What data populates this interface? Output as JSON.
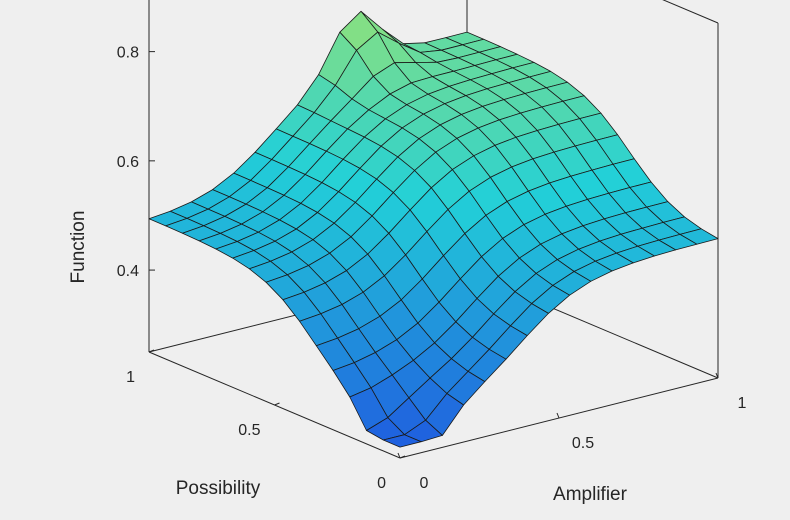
{
  "chart_data": {
    "type": "surface",
    "title": "",
    "xlabel": "Amplifier",
    "ylabel": "Possibility",
    "zlabel": "Function",
    "xlim": [
      0,
      1
    ],
    "ylim": [
      0,
      1
    ],
    "zlim": [
      0.25,
      0.9
    ],
    "x_ticks": [
      "0",
      "0.5",
      "1"
    ],
    "y_ticks": [
      "0",
      "0.5",
      "1"
    ],
    "z_ticks": [
      "0.4",
      "0.6",
      "0.8"
    ],
    "grid": false,
    "colormap": "parula",
    "colors": {
      "low": "#1f4fe0",
      "mid": "#22d0d8",
      "high": "#dcee3a",
      "edge": "#1a1a1a",
      "background": "#efefef",
      "axis": "#262626"
    },
    "grid_x": [
      0,
      0.0667,
      0.1333,
      0.2,
      0.2667,
      0.3333,
      0.4,
      0.4667,
      0.5333,
      0.6,
      0.6667,
      0.7333,
      0.8,
      0.8667,
      0.9333,
      1
    ],
    "grid_y": [
      0,
      0.0667,
      0.1333,
      0.2,
      0.2667,
      0.3333,
      0.4,
      0.4667,
      0.5333,
      0.6,
      0.6667,
      0.7333,
      0.8,
      0.8667,
      0.9333,
      1
    ],
    "model": {
      "description_free_params": true,
      "base": 0.3,
      "b_amplifier_amp": 0.2,
      "b_amplifier_center": 0.38,
      "b_amplifier_width": 0.1,
      "possibility_amp": 0.19,
      "possibility_center": 0.35,
      "possibility_width": 0.1,
      "low_corner_dip": 0.12,
      "high_corner_peak": 0.1
    }
  }
}
